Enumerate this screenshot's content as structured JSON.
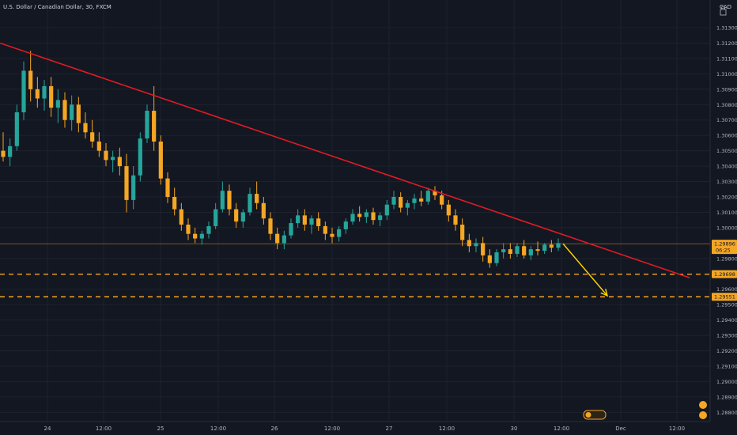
{
  "header": {
    "title": "U.S. Dollar / Canadian Dollar, 30, FXCM"
  },
  "axis": {
    "currency": "CAD"
  },
  "price_badge": {
    "price": "1.29896",
    "countdown": "06:25"
  },
  "levels": [
    {
      "label": "1.29698",
      "value": 1.29698,
      "color": "#f5a623"
    },
    {
      "label": "1.29551",
      "value": 1.29551,
      "color": "#f5a623"
    }
  ],
  "colors": {
    "background": "#131722",
    "up": "#26a69a",
    "down": "#f5a623",
    "trendline": "#e31b23",
    "arrow": "#ffd600",
    "grid": "#1e222d"
  },
  "icons": [
    "lock-icon",
    "events-icon",
    "dividends-icon"
  ],
  "chart_data": {
    "type": "candlestick",
    "title": "U.S. Dollar / Canadian Dollar, 30, FXCM",
    "ylim": [
      1.2875,
      1.3145
    ],
    "y_ticks": [
      "1.31300",
      "1.31200",
      "1.31100",
      "1.31000",
      "1.30900",
      "1.30800",
      "1.30700",
      "1.30600",
      "1.30500",
      "1.30400",
      "1.30300",
      "1.30200",
      "1.30100",
      "1.30000",
      "1.29800",
      "1.29600",
      "1.29500",
      "1.29400",
      "1.29300",
      "1.29200",
      "1.29100",
      "1.29000",
      "1.28900",
      "1.28800"
    ],
    "x_ticks": [
      "24",
      "12:00",
      "25",
      "12:00",
      "26",
      "12:00",
      "27",
      "12:00",
      "30",
      "12:00",
      "Dec",
      "12:00"
    ],
    "last_price": 1.29896,
    "series": [
      {
        "o": 1.305,
        "h": 1.3062,
        "l": 1.3043,
        "c": 1.3046
      },
      {
        "o": 1.3046,
        "h": 1.3058,
        "l": 1.304,
        "c": 1.3053
      },
      {
        "o": 1.3053,
        "h": 1.308,
        "l": 1.305,
        "c": 1.3075
      },
      {
        "o": 1.3075,
        "h": 1.3108,
        "l": 1.307,
        "c": 1.3102
      },
      {
        "o": 1.3102,
        "h": 1.3115,
        "l": 1.3082,
        "c": 1.309
      },
      {
        "o": 1.309,
        "h": 1.3098,
        "l": 1.3078,
        "c": 1.3084
      },
      {
        "o": 1.3084,
        "h": 1.3096,
        "l": 1.3076,
        "c": 1.3092
      },
      {
        "o": 1.3092,
        "h": 1.3098,
        "l": 1.3072,
        "c": 1.3078
      },
      {
        "o": 1.3078,
        "h": 1.309,
        "l": 1.3068,
        "c": 1.3083
      },
      {
        "o": 1.3083,
        "h": 1.3088,
        "l": 1.3065,
        "c": 1.307
      },
      {
        "o": 1.307,
        "h": 1.3086,
        "l": 1.3063,
        "c": 1.308
      },
      {
        "o": 1.308,
        "h": 1.3085,
        "l": 1.3062,
        "c": 1.3068
      },
      {
        "o": 1.3068,
        "h": 1.3075,
        "l": 1.3058,
        "c": 1.3062
      },
      {
        "o": 1.3062,
        "h": 1.307,
        "l": 1.3052,
        "c": 1.3056
      },
      {
        "o": 1.3056,
        "h": 1.3062,
        "l": 1.3046,
        "c": 1.305
      },
      {
        "o": 1.305,
        "h": 1.3055,
        "l": 1.304,
        "c": 1.3044
      },
      {
        "o": 1.3044,
        "h": 1.305,
        "l": 1.3036,
        "c": 1.3046
      },
      {
        "o": 1.3046,
        "h": 1.3052,
        "l": 1.3034,
        "c": 1.304
      },
      {
        "o": 1.304,
        "h": 1.3048,
        "l": 1.301,
        "c": 1.3018
      },
      {
        "o": 1.3018,
        "h": 1.304,
        "l": 1.3012,
        "c": 1.3034
      },
      {
        "o": 1.3034,
        "h": 1.3062,
        "l": 1.303,
        "c": 1.3058
      },
      {
        "o": 1.3058,
        "h": 1.308,
        "l": 1.3055,
        "c": 1.3076
      },
      {
        "o": 1.3076,
        "h": 1.3092,
        "l": 1.305,
        "c": 1.3056
      },
      {
        "o": 1.3056,
        "h": 1.306,
        "l": 1.3028,
        "c": 1.3032
      },
      {
        "o": 1.3032,
        "h": 1.3036,
        "l": 1.3016,
        "c": 1.302
      },
      {
        "o": 1.302,
        "h": 1.3026,
        "l": 1.3008,
        "c": 1.3012
      },
      {
        "o": 1.3012,
        "h": 1.3016,
        "l": 1.2998,
        "c": 1.3002
      },
      {
        "o": 1.3002,
        "h": 1.3006,
        "l": 1.2992,
        "c": 1.2996
      },
      {
        "o": 1.2996,
        "h": 1.3,
        "l": 1.299,
        "c": 1.2993
      },
      {
        "o": 1.2993,
        "h": 1.2998,
        "l": 1.2989,
        "c": 1.2996
      },
      {
        "o": 1.2996,
        "h": 1.3004,
        "l": 1.2993,
        "c": 1.3001
      },
      {
        "o": 1.3001,
        "h": 1.3016,
        "l": 1.2999,
        "c": 1.3012
      },
      {
        "o": 1.3012,
        "h": 1.303,
        "l": 1.301,
        "c": 1.3024
      },
      {
        "o": 1.3024,
        "h": 1.3028,
        "l": 1.3008,
        "c": 1.3012
      },
      {
        "o": 1.3012,
        "h": 1.3016,
        "l": 1.3,
        "c": 1.3004
      },
      {
        "o": 1.3004,
        "h": 1.3012,
        "l": 1.3,
        "c": 1.301
      },
      {
        "o": 1.301,
        "h": 1.3026,
        "l": 1.3008,
        "c": 1.3022
      },
      {
        "o": 1.3022,
        "h": 1.303,
        "l": 1.3012,
        "c": 1.3016
      },
      {
        "o": 1.3016,
        "h": 1.302,
        "l": 1.3002,
        "c": 1.3006
      },
      {
        "o": 1.3006,
        "h": 1.301,
        "l": 1.2992,
        "c": 1.2996
      },
      {
        "o": 1.2996,
        "h": 1.3,
        "l": 1.2986,
        "c": 1.299
      },
      {
        "o": 1.299,
        "h": 1.2998,
        "l": 1.2986,
        "c": 1.2995
      },
      {
        "o": 1.2995,
        "h": 1.3006,
        "l": 1.2993,
        "c": 1.3003
      },
      {
        "o": 1.3003,
        "h": 1.3012,
        "l": 1.3,
        "c": 1.3008
      },
      {
        "o": 1.3008,
        "h": 1.3012,
        "l": 1.2998,
        "c": 1.3002
      },
      {
        "o": 1.3002,
        "h": 1.3008,
        "l": 1.2996,
        "c": 1.3006
      },
      {
        "o": 1.3006,
        "h": 1.301,
        "l": 1.2998,
        "c": 1.3001
      },
      {
        "o": 1.3001,
        "h": 1.3004,
        "l": 1.2992,
        "c": 1.2996
      },
      {
        "o": 1.2996,
        "h": 1.3,
        "l": 1.299,
        "c": 1.2994
      },
      {
        "o": 1.2994,
        "h": 1.3001,
        "l": 1.2991,
        "c": 1.2999
      },
      {
        "o": 1.2999,
        "h": 1.3006,
        "l": 1.2996,
        "c": 1.3004
      },
      {
        "o": 1.3004,
        "h": 1.3012,
        "l": 1.3002,
        "c": 1.3009
      },
      {
        "o": 1.3009,
        "h": 1.3014,
        "l": 1.3004,
        "c": 1.3007
      },
      {
        "o": 1.3007,
        "h": 1.3012,
        "l": 1.3003,
        "c": 1.301
      },
      {
        "o": 1.301,
        "h": 1.3013,
        "l": 1.3002,
        "c": 1.3005
      },
      {
        "o": 1.3005,
        "h": 1.301,
        "l": 1.3001,
        "c": 1.3008
      },
      {
        "o": 1.3008,
        "h": 1.3018,
        "l": 1.3005,
        "c": 1.3015
      },
      {
        "o": 1.3015,
        "h": 1.3024,
        "l": 1.3012,
        "c": 1.302
      },
      {
        "o": 1.302,
        "h": 1.3023,
        "l": 1.301,
        "c": 1.3013
      },
      {
        "o": 1.3013,
        "h": 1.3018,
        "l": 1.3008,
        "c": 1.3016
      },
      {
        "o": 1.3016,
        "h": 1.3022,
        "l": 1.3012,
        "c": 1.3019
      },
      {
        "o": 1.3019,
        "h": 1.3024,
        "l": 1.3014,
        "c": 1.3017
      },
      {
        "o": 1.3017,
        "h": 1.3026,
        "l": 1.3015,
        "c": 1.3024
      },
      {
        "o": 1.3024,
        "h": 1.3027,
        "l": 1.3018,
        "c": 1.3021
      },
      {
        "o": 1.3021,
        "h": 1.3024,
        "l": 1.3012,
        "c": 1.3015
      },
      {
        "o": 1.3015,
        "h": 1.3018,
        "l": 1.3004,
        "c": 1.3008
      },
      {
        "o": 1.3008,
        "h": 1.3012,
        "l": 1.2998,
        "c": 1.3002
      },
      {
        "o": 1.3002,
        "h": 1.3006,
        "l": 1.2988,
        "c": 1.2992
      },
      {
        "o": 1.2992,
        "h": 1.2996,
        "l": 1.2984,
        "c": 1.2988
      },
      {
        "o": 1.2988,
        "h": 1.2993,
        "l": 1.2984,
        "c": 1.299
      },
      {
        "o": 1.299,
        "h": 1.2994,
        "l": 1.2978,
        "c": 1.2982
      },
      {
        "o": 1.2982,
        "h": 1.2986,
        "l": 1.2974,
        "c": 1.2977
      },
      {
        "o": 1.2977,
        "h": 1.2986,
        "l": 1.2975,
        "c": 1.2984
      },
      {
        "o": 1.2984,
        "h": 1.299,
        "l": 1.298,
        "c": 1.2986
      },
      {
        "o": 1.2986,
        "h": 1.299,
        "l": 1.298,
        "c": 1.2983
      },
      {
        "o": 1.2983,
        "h": 1.299,
        "l": 1.2981,
        "c": 1.2988
      },
      {
        "o": 1.2988,
        "h": 1.2992,
        "l": 1.298,
        "c": 1.2982
      },
      {
        "o": 1.2982,
        "h": 1.2988,
        "l": 1.2979,
        "c": 1.2986
      },
      {
        "o": 1.2986,
        "h": 1.2991,
        "l": 1.2982,
        "c": 1.2985
      },
      {
        "o": 1.2985,
        "h": 1.299,
        "l": 1.2983,
        "c": 1.2989
      },
      {
        "o": 1.2989,
        "h": 1.2992,
        "l": 1.2984,
        "c": 1.2987
      },
      {
        "o": 1.2987,
        "h": 1.2993,
        "l": 1.2985,
        "c": 1.299
      }
    ],
    "trendline": {
      "start": [
        0,
        1.312
      ],
      "end": [
        872,
        1.29675
      ]
    },
    "projection_arrow": {
      "from": [
        712,
        1.29896
      ],
      "to": [
        768,
        1.29558
      ]
    }
  }
}
